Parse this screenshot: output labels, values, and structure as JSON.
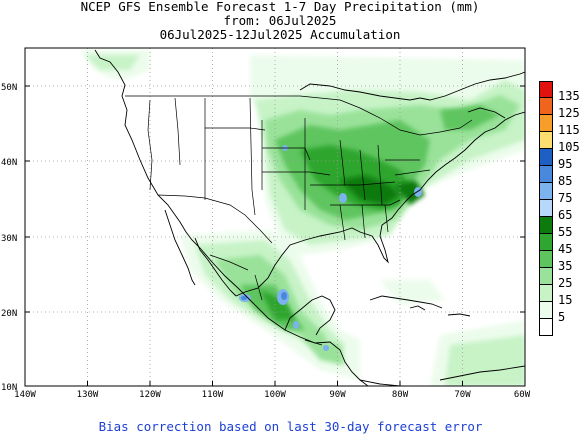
{
  "title": {
    "line1": "NCEP GFS Ensemble Forecast 1-7 Day Precipitation (mm)",
    "line2": "from: 06Jul2025",
    "line3": "06Jul2025-12Jul2025 Accumulation"
  },
  "axes": {
    "lat_labels": [
      "50N",
      "40N",
      "30N",
      "20N",
      "10N"
    ],
    "lon_labels": [
      "140W",
      "130W",
      "120W",
      "110W",
      "100W",
      "90W",
      "80W",
      "70W",
      "60W"
    ]
  },
  "legend": {
    "items": [
      {
        "label": "135",
        "color": "#e2130f"
      },
      {
        "label": "125",
        "color": "#f0641e"
      },
      {
        "label": "115",
        "color": "#f79e2a"
      },
      {
        "label": "105",
        "color": "#fdde6e"
      },
      {
        "label": "95",
        "color": "#1e5fc4"
      },
      {
        "label": "85",
        "color": "#4a88de"
      },
      {
        "label": "75",
        "color": "#7cb2ee"
      },
      {
        "label": "65",
        "color": "#b6d8fa"
      },
      {
        "label": "55",
        "color": "#0c7a0c"
      },
      {
        "label": "45",
        "color": "#2fa62f"
      },
      {
        "label": "35",
        "color": "#5ec55e"
      },
      {
        "label": "25",
        "color": "#9ae29a"
      },
      {
        "label": "15",
        "color": "#c7f3c7"
      },
      {
        "label": "5",
        "color": "#ecfcec"
      },
      {
        "label": "",
        "color": "#ffffff"
      }
    ]
  },
  "footer": "Bias correction based on last 30-day forecast error"
}
